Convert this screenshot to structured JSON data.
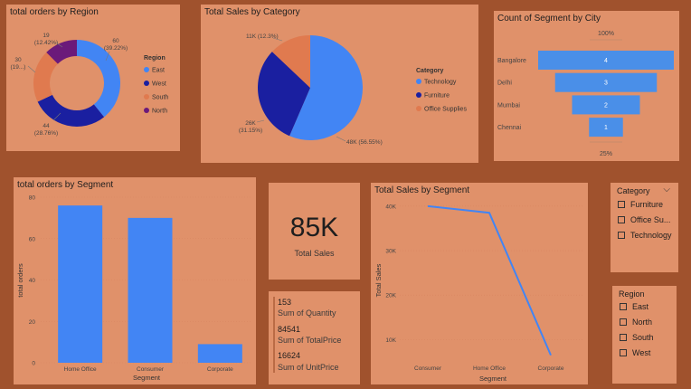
{
  "colors": {
    "background": "#a0522d",
    "card": "#e0916a",
    "blue": "#4285f4",
    "navy": "#1a1fa0",
    "orange": "#e07a4f",
    "purple": "#6b1a7a",
    "funnel": "#4a8fe8"
  },
  "region_donut": {
    "title": "total orders by Region",
    "legend_title": "Region",
    "labels": {
      "east": "60\n(39.22%)",
      "west": "44\n(28.76%)",
      "south": "30\n(19...)",
      "north": "19\n(12.42%)"
    },
    "chart_data": {
      "type": "pie",
      "categories": [
        "East",
        "West",
        "South",
        "North"
      ],
      "values": [
        60,
        44,
        30,
        19
      ],
      "percents": [
        39.22,
        28.76,
        19.61,
        12.42
      ]
    }
  },
  "category_pie": {
    "title": "Total Sales by Category",
    "legend_title": "Category",
    "labels": {
      "technology": "48K (56.55%)",
      "furniture": "26K\n(31.15%)",
      "office": "11K (12.3%)"
    },
    "chart_data": {
      "type": "pie",
      "categories": [
        "Technology",
        "Furniture",
        "Office Supplies"
      ],
      "values": [
        48000,
        26000,
        11000
      ],
      "percents": [
        56.55,
        31.15,
        12.3
      ]
    }
  },
  "segment_city": {
    "title": "Count of Segment by City",
    "top_label": "100%",
    "bottom_label": "25%",
    "chart_data": {
      "type": "bar",
      "categories": [
        "Bangalore",
        "Delhi",
        "Mumbai",
        "Chennai"
      ],
      "values": [
        4,
        3,
        2,
        1
      ]
    }
  },
  "orders_segment": {
    "title": "total orders by Segment",
    "chart_data": {
      "type": "bar",
      "categories": [
        "Home Office",
        "Consumer",
        "Corporate"
      ],
      "values": [
        76,
        70,
        9
      ],
      "xlabel": "Segment",
      "ylabel": "total orders",
      "ylim": [
        0,
        80
      ],
      "ticks": [
        "0",
        "20",
        "40",
        "60",
        "80"
      ]
    }
  },
  "kpi": {
    "value": "85K",
    "label": "Total Sales"
  },
  "multi_card": {
    "rows": [
      {
        "value": "153",
        "label": "Sum of Quantity"
      },
      {
        "value": "84541",
        "label": "Sum of TotalPrice"
      },
      {
        "value": "16624",
        "label": "Sum of UnitPrice"
      }
    ]
  },
  "sales_segment": {
    "title": "Total Sales by Segment",
    "chart_data": {
      "type": "line",
      "categories": [
        "Consumer",
        "Home Office",
        "Corporate"
      ],
      "values": [
        40000,
        38500,
        6500
      ],
      "xlabel": "Segment",
      "ylabel": "Total Sales",
      "ylim": [
        5000,
        42000
      ],
      "ticks": [
        "10K",
        "20K",
        "30K",
        "40K"
      ]
    }
  },
  "category_slicer": {
    "title": "Category",
    "items": [
      "Furniture",
      "Office Su...",
      "Technology"
    ]
  },
  "region_slicer": {
    "title": "Region",
    "items": [
      "East",
      "North",
      "South",
      "West"
    ]
  }
}
